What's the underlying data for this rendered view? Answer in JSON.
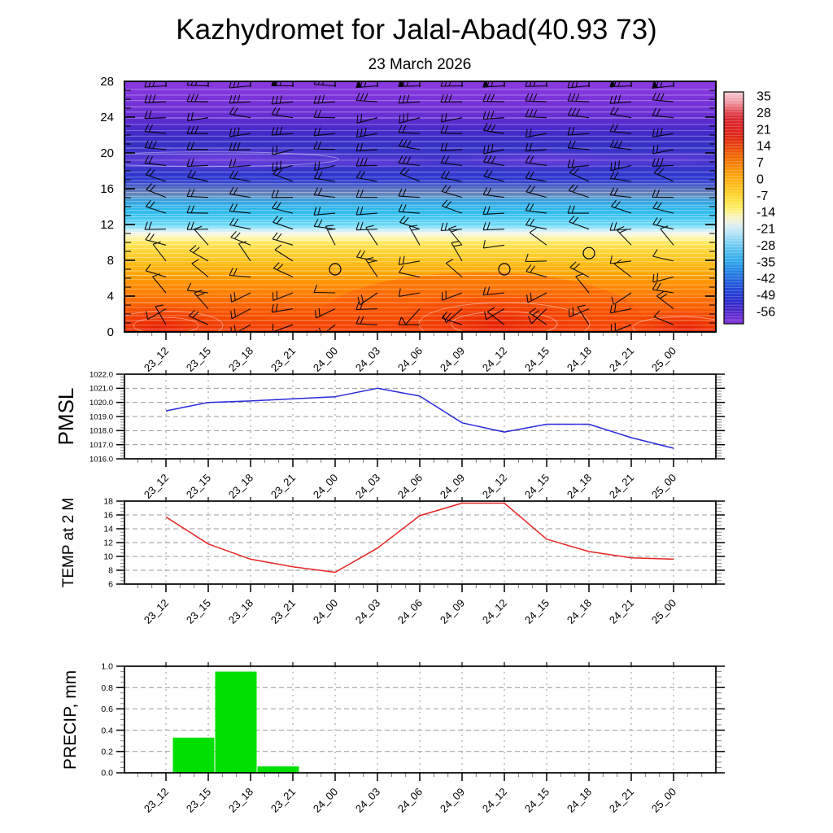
{
  "title": "Kazhydromet for Jalal-Abad(40.93 73)",
  "subtitle": "23 March 2026",
  "time_labels": [
    "23_12",
    "23_15",
    "23_18",
    "23_21",
    "24_00",
    "24_03",
    "24_06",
    "24_09",
    "24_12",
    "24_15",
    "24_18",
    "24_21",
    "25_00"
  ],
  "chart_data": [
    {
      "type": "heatmap",
      "name": "temperature-height-cross-section",
      "x": [
        "23_12",
        "23_15",
        "23_18",
        "23_21",
        "24_00",
        "24_03",
        "24_06",
        "24_09",
        "24_12",
        "24_15",
        "24_18",
        "24_21",
        "25_00"
      ],
      "ylim": [
        0,
        28
      ],
      "yticks": [
        0,
        4,
        8,
        12,
        16,
        20,
        24,
        28
      ],
      "grid": "13 columns x 16 rows of black wind barbs over temperature shading",
      "colorbar": {
        "tick_labels": [
          "35",
          "28",
          "21",
          "14",
          "7",
          "0",
          "-7",
          "-14",
          "-21",
          "-28",
          "-35",
          "-42",
          "-49",
          "-56"
        ],
        "stops": [
          {
            "offset": 0,
            "color": "#f8ccd4"
          },
          {
            "offset": 2,
            "color": "#f4b4bd"
          },
          {
            "offset": 5,
            "color": "#ee8e98"
          },
          {
            "offset": 8,
            "color": "#e4545e"
          },
          {
            "offset": 11,
            "color": "#da2a34"
          },
          {
            "offset": 16,
            "color": "#dd2121"
          },
          {
            "offset": 20,
            "color": "#e12a14"
          },
          {
            "offset": 23,
            "color": "#e73f0a"
          },
          {
            "offset": 26,
            "color": "#ed5a03"
          },
          {
            "offset": 30,
            "color": "#f47701"
          },
          {
            "offset": 34,
            "color": "#fb9708"
          },
          {
            "offset": 38,
            "color": "#ffb013"
          },
          {
            "offset": 42,
            "color": "#ffc51e"
          },
          {
            "offset": 45,
            "color": "#ffd633"
          },
          {
            "offset": 48,
            "color": "#ffe74e"
          },
          {
            "offset": 51,
            "color": "#fff176"
          },
          {
            "offset": 53,
            "color": "#fbf4ae"
          },
          {
            "offset": 55.5,
            "color": "#f3f3d8"
          },
          {
            "offset": 58,
            "color": "#d9edf4"
          },
          {
            "offset": 61,
            "color": "#b2e2f6"
          },
          {
            "offset": 64,
            "color": "#8cd5f4"
          },
          {
            "offset": 67,
            "color": "#63c6f1"
          },
          {
            "offset": 70,
            "color": "#46b8ee"
          },
          {
            "offset": 73,
            "color": "#2fa8ea"
          },
          {
            "offset": 76,
            "color": "#268fe6"
          },
          {
            "offset": 79,
            "color": "#2377e2"
          },
          {
            "offset": 82,
            "color": "#225fdc"
          },
          {
            "offset": 85,
            "color": "#2349d6"
          },
          {
            "offset": 88,
            "color": "#2637d0"
          },
          {
            "offset": 91,
            "color": "#3029cb"
          },
          {
            "offset": 93.5,
            "color": "#4327c9"
          },
          {
            "offset": 96,
            "color": "#5c2bce"
          },
          {
            "offset": 100,
            "color": "#8636d8"
          }
        ]
      },
      "shading_stops": [
        {
          "km": 28,
          "color": "#8c3ae2"
        },
        {
          "km": 26.5,
          "color": "#7f34db"
        },
        {
          "km": 25,
          "color": "#7030d6"
        },
        {
          "km": 23.5,
          "color": "#5b2bd0"
        },
        {
          "km": 22.4,
          "color": "#4529ca"
        },
        {
          "km": 21,
          "color": "#3530c6"
        },
        {
          "km": 20,
          "color": "#3b33ca"
        },
        {
          "km": 19,
          "color": "#4336cd"
        },
        {
          "km": 18,
          "color": "#3334cd"
        },
        {
          "km": 17,
          "color": "#2c38d2"
        },
        {
          "km": 16.3,
          "color": "#3e55c6"
        },
        {
          "km": 15.5,
          "color": "#5f7fc0"
        },
        {
          "km": 14.8,
          "color": "#419bd8"
        },
        {
          "km": 14,
          "color": "#28b2e8"
        },
        {
          "km": 13,
          "color": "#38c2f0"
        },
        {
          "km": 12,
          "color": "#66d6f6"
        },
        {
          "km": 11.6,
          "color": "#a0e6f8"
        },
        {
          "km": 11.3,
          "color": "#d2eff7"
        },
        {
          "km": 11.0,
          "color": "#f4f8e6"
        },
        {
          "km": 10.75,
          "color": "#fdf8cd"
        },
        {
          "km": 10.35,
          "color": "#fff29c"
        },
        {
          "km": 10,
          "color": "#ffe75e"
        },
        {
          "km": 9,
          "color": "#ffd63a"
        },
        {
          "km": 8,
          "color": "#ffc41d"
        },
        {
          "km": 7,
          "color": "#ffb00d"
        },
        {
          "km": 6,
          "color": "#ff9c04"
        },
        {
          "km": 5,
          "color": "#ff8a00"
        },
        {
          "km": 4,
          "color": "#ff7800"
        },
        {
          "km": 3,
          "color": "#fb6300"
        },
        {
          "km": 2,
          "color": "#f75200"
        },
        {
          "km": 1,
          "color": "#f44600"
        },
        {
          "km": 0,
          "color": "#f23c00"
        }
      ],
      "calm_markers": [
        {
          "x": "24_00",
          "km": 7
        },
        {
          "x": "24_12",
          "km": 7
        },
        {
          "x": "24_18",
          "km": 8.8
        }
      ],
      "hot_spots": [
        {
          "x": "23_12",
          "km": 0.5
        },
        {
          "x": "24_12",
          "km": 0.8
        },
        {
          "x": "25_00",
          "km": 0.5
        }
      ],
      "cold_pockets": [
        {
          "x": "23_15",
          "km": 19.3
        },
        {
          "x": "24_03",
          "km": 19.0
        },
        {
          "x": "24_15",
          "km": 19.2
        },
        {
          "x": "25_00",
          "km": 19.4
        }
      ]
    },
    {
      "type": "line",
      "ylabel": "PMSL",
      "color": "#2828dc",
      "ylim": [
        1016,
        1022
      ],
      "ytick_step": 1,
      "yminor_step": 0.2,
      "decimals": 1,
      "x": [
        "23_12",
        "23_15",
        "23_18",
        "23_21",
        "24_00",
        "24_03",
        "24_06",
        "24_09",
        "24_12",
        "24_15",
        "24_18",
        "24_21",
        "25_00"
      ],
      "values": [
        1019.4,
        1020.0,
        1020.1,
        1020.25,
        1020.4,
        1021.0,
        1020.45,
        1018.55,
        1017.9,
        1018.45,
        1018.45,
        1017.5,
        1016.75
      ]
    },
    {
      "type": "line",
      "ylabel": "TEMP at 2 M",
      "color": "#e82424",
      "ylim": [
        6,
        18
      ],
      "ytick_step": 2,
      "yminor_step": 0.5,
      "decimals": 0,
      "x": [
        "23_12",
        "23_15",
        "23_18",
        "23_21",
        "24_00",
        "24_03",
        "24_06",
        "24_09",
        "24_12",
        "24_15",
        "24_18",
        "24_21",
        "25_00"
      ],
      "values": [
        15.7,
        11.8,
        9.6,
        8.5,
        7.7,
        11.2,
        15.9,
        17.7,
        17.7,
        12.5,
        10.7,
        9.8,
        9.6
      ]
    },
    {
      "type": "bar",
      "ylabel": "PRECIP, mm",
      "color": "#00e000",
      "ylim": [
        0,
        1.0
      ],
      "ytick_step": 0.2,
      "yminor_step": 0.05,
      "decimals": 1,
      "x": [
        "23_12",
        "23_15",
        "23_18",
        "23_21",
        "24_00",
        "24_03",
        "24_06",
        "24_09",
        "24_12",
        "24_15",
        "24_18",
        "24_21",
        "25_00"
      ],
      "values": [
        0,
        0.33,
        0.95,
        0.06,
        0,
        0,
        0,
        0,
        0,
        0,
        0,
        0,
        0
      ],
      "note": "bar i spans the 3 h interval ending at x[i]"
    }
  ]
}
